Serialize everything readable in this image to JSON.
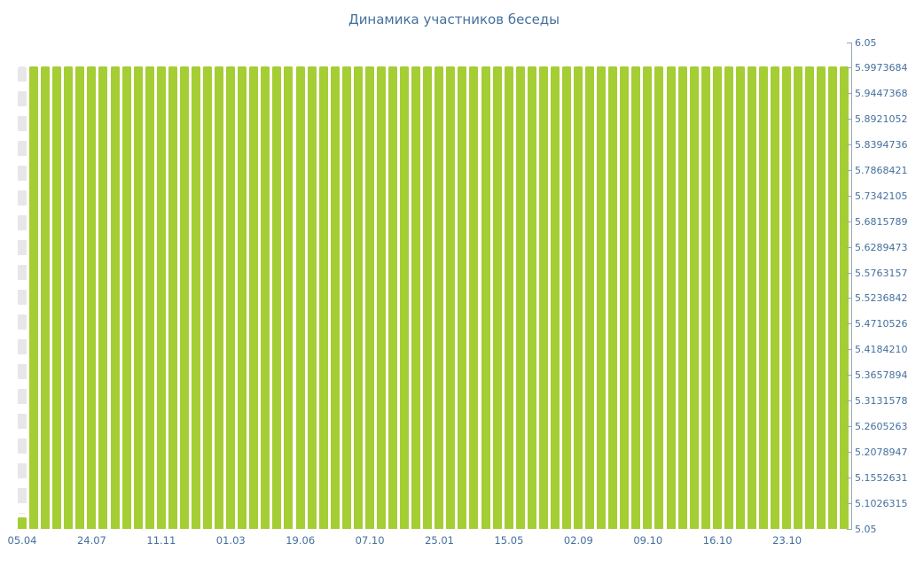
{
  "title": "Динамика участников беседы",
  "colors": {
    "bar": "#a5cd34",
    "label": "#44709d",
    "axis": "#9aa5ae",
    "dash": "#e7e7e9"
  },
  "chart_data": {
    "type": "bar",
    "title": "Динамика участников беседы",
    "ylim": [
      5.05,
      6.05
    ],
    "y_axis_side": "right",
    "grid": "off",
    "legend": "none",
    "x_label_every": 6,
    "x_tick_labels": [
      "05.04",
      "24.07",
      "11.11",
      "01.03",
      "19.06",
      "07.10",
      "25.01",
      "15.05",
      "02.09",
      "09.10",
      "16.10",
      "23.10"
    ],
    "y_ticks": [
      "6.05",
      "5.9973684210526",
      "5.9447368421053",
      "5.8921052631579",
      "5.8394736842105",
      "5.7868421052632",
      "5.7342105263158",
      "5.6815789473684",
      "5.6289473684211",
      "5.5763157894737",
      "5.5236842105263",
      "5.4710526315789",
      "5.4184210526316",
      "5.3657894736842",
      "5.3131578947368",
      "5.2605263157895",
      "5.2078947368421",
      "5.1552631578947",
      "5.1026315789474",
      "5.05"
    ],
    "values": [
      5,
      6,
      6,
      6,
      6,
      6,
      6,
      6,
      6,
      6,
      6,
      6,
      6,
      6,
      6,
      6,
      6,
      6,
      6,
      6,
      6,
      6,
      6,
      6,
      6,
      6,
      6,
      6,
      6,
      6,
      6,
      6,
      6,
      6,
      6,
      6,
      6,
      6,
      6,
      6,
      6,
      6,
      6,
      6,
      6,
      6,
      6,
      6,
      6,
      6,
      6,
      6,
      6,
      6,
      6,
      6,
      6,
      6,
      6,
      6,
      6,
      6,
      6,
      6,
      6,
      6,
      6,
      6,
      6,
      6,
      6,
      6
    ]
  }
}
